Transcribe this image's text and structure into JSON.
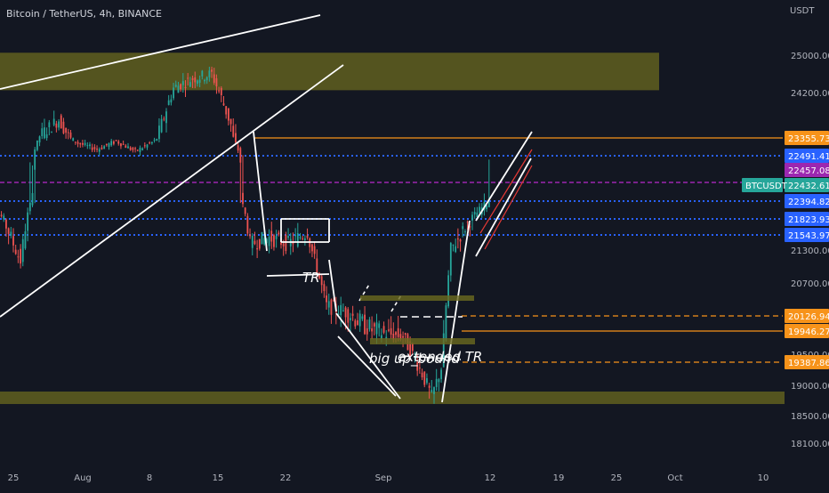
{
  "header": {
    "symbol_title": "Bitcoin / TetherUS, 4h, BINANCE"
  },
  "colors": {
    "background": "#131722",
    "bull": "#26a69a",
    "bear": "#ef5350",
    "zone": "#6b6a1f",
    "orange": "#f7931a",
    "blue_label": "#2962ff",
    "purple_label": "#9c27b0",
    "teal_label": "#26a69a",
    "axis_text": "#b2b5be"
  },
  "chart_data": {
    "type": "candlestick",
    "title": "Bitcoin / TetherUS, 4h, BINANCE",
    "currency_label": "USDT",
    "x_tick_labels": [
      "25",
      "Aug",
      "8",
      "15",
      "22",
      "Sep",
      "12",
      "19",
      "25",
      "Oct",
      "10"
    ],
    "y_tick_labels": [
      "25000.00",
      "24200.00",
      "21300.00",
      "20700.00",
      "19500.00",
      "19000.00",
      "18500.00",
      "18100.00"
    ],
    "ylim": [
      17900,
      25800
    ],
    "close_path": [
      {
        "date": "Jul 22",
        "close": 22500
      },
      {
        "date": "Jul 24",
        "close": 21900
      },
      {
        "date": "Jul 26",
        "close": 21100
      },
      {
        "date": "Jul 28",
        "close": 23400
      },
      {
        "date": "Jul 30",
        "close": 23700
      },
      {
        "date": "Aug 1",
        "close": 23100
      },
      {
        "date": "Aug 3",
        "close": 22800
      },
      {
        "date": "Aug 5",
        "close": 23200
      },
      {
        "date": "Aug 7",
        "close": 22700
      },
      {
        "date": "Aug 9",
        "close": 23200
      },
      {
        "date": "Aug 11",
        "close": 24300
      },
      {
        "date": "Aug 13",
        "close": 24500
      },
      {
        "date": "Aug 15",
        "close": 24600
      },
      {
        "date": "Aug 17",
        "close": 23600
      },
      {
        "date": "Aug 19",
        "close": 21400
      },
      {
        "date": "Aug 21",
        "close": 21500
      },
      {
        "date": "Aug 23",
        "close": 21400
      },
      {
        "date": "Aug 25",
        "close": 21600
      },
      {
        "date": "Aug 27",
        "close": 20300
      },
      {
        "date": "Aug 29",
        "close": 20200
      },
      {
        "date": "Aug 31",
        "close": 20000
      },
      {
        "date": "Sep 2",
        "close": 19900
      },
      {
        "date": "Sep 4",
        "close": 19850
      },
      {
        "date": "Sep 6",
        "close": 19200
      },
      {
        "date": "Sep 7",
        "close": 18800
      },
      {
        "date": "Sep 8",
        "close": 19300
      },
      {
        "date": "Sep 9",
        "close": 21300
      },
      {
        "date": "Sep 11",
        "close": 21800
      },
      {
        "date": "Sep 13",
        "close": 22400
      }
    ],
    "zones": [
      {
        "low": 24250,
        "high": 25050
      },
      {
        "low": 18720,
        "high": 18860
      }
    ],
    "horizontal_lines": [
      {
        "price": 23355.73,
        "style": "solid",
        "color": "#f7931a"
      },
      {
        "price": 20126.94,
        "style": "dashed",
        "color": "#f7931a"
      },
      {
        "price": 19946.27,
        "style": "solid",
        "color": "#f7931a"
      },
      {
        "price": 19387.86,
        "style": "dashed",
        "color": "#f7931a"
      },
      {
        "price": 22491.41,
        "style": "dotted",
        "color": "#2962ff"
      },
      {
        "price": 22394.82,
        "style": "dotted",
        "color": "#2962ff"
      },
      {
        "price": 21823.93,
        "style": "dotted",
        "color": "#2962ff"
      },
      {
        "price": 21543.97,
        "style": "dotted",
        "color": "#2962ff"
      }
    ],
    "price_labels": [
      {
        "text": "23355.73",
        "price": 23355.73,
        "color": "#f7931a"
      },
      {
        "text": "22491.41",
        "price": 22491.41,
        "color": "#2962ff"
      },
      {
        "text": "22457.08",
        "price": 22457.08,
        "color": "#9c27b0"
      },
      {
        "text": "22432.61",
        "price": 22432.61,
        "color": "#26a69a",
        "tag": "BTCUSDT"
      },
      {
        "text": "22394.82",
        "price": 22394.82,
        "color": "#2962ff"
      },
      {
        "text": "21823.93",
        "price": 21823.93,
        "color": "#2962ff"
      },
      {
        "text": "21543.97",
        "price": 21543.97,
        "color": "#2962ff"
      },
      {
        "text": "20126.94",
        "price": 20126.94,
        "color": "#f7931a"
      },
      {
        "text": "19946.27",
        "price": 19946.27,
        "color": "#f7931a"
      },
      {
        "text": "19387.86",
        "price": 19387.86,
        "color": "#f7931a"
      }
    ],
    "annotations": [
      "TR",
      "big up_bound",
      "extended TR"
    ],
    "grid": false
  }
}
